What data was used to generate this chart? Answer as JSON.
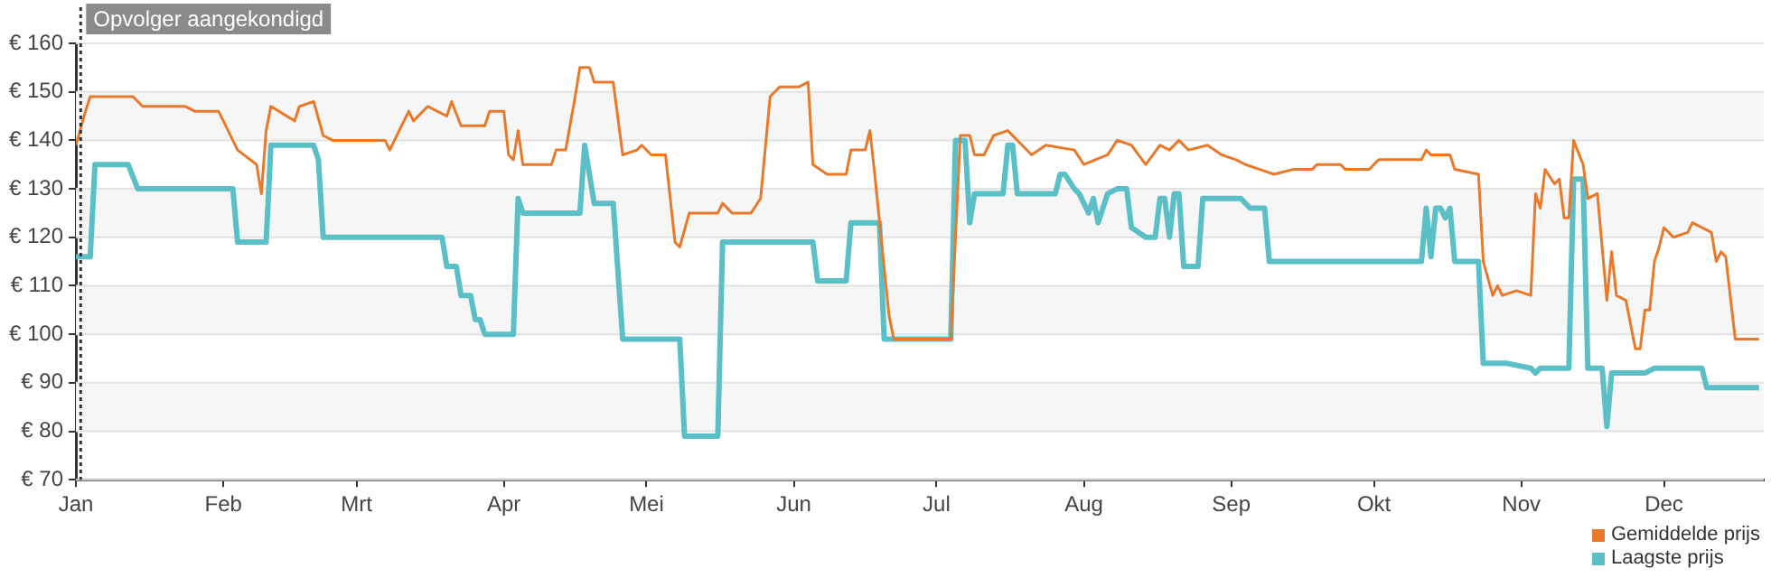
{
  "chart_data": {
    "type": "line",
    "xlim": [
      "--01-01",
      "--12-22"
    ],
    "xticks": [
      {
        "value": "--01-01",
        "label": "Jan"
      },
      {
        "value": "--02-01",
        "label": "Feb"
      },
      {
        "value": "--03-01",
        "label": "Mrt"
      },
      {
        "value": "--04-01",
        "label": "Apr"
      },
      {
        "value": "--05-01",
        "label": "Mei"
      },
      {
        "value": "--06-01",
        "label": "Jun"
      },
      {
        "value": "--07-01",
        "label": "Jul"
      },
      {
        "value": "--08-01",
        "label": "Aug"
      },
      {
        "value": "--09-01",
        "label": "Sep"
      },
      {
        "value": "--10-01",
        "label": "Okt"
      },
      {
        "value": "--11-01",
        "label": "Nov"
      },
      {
        "value": "--12-01",
        "label": "Dec"
      }
    ],
    "ylim": [
      70,
      160
    ],
    "yticks": [
      {
        "value": 70,
        "label": "€ 70"
      },
      {
        "value": 80,
        "label": "€ 80"
      },
      {
        "value": 90,
        "label": "€ 90"
      },
      {
        "value": 100,
        "label": "€ 100"
      },
      {
        "value": 110,
        "label": "€ 110"
      },
      {
        "value": 120,
        "label": "€ 120"
      },
      {
        "value": 130,
        "label": "€ 130"
      },
      {
        "value": 140,
        "label": "€ 140"
      },
      {
        "value": 150,
        "label": "€ 150"
      },
      {
        "value": 160,
        "label": "€ 160"
      }
    ],
    "grid": "y",
    "legend": "bottom right",
    "marker": "none",
    "ref_lines": [
      {
        "axis": "x",
        "value": "--01-02",
        "label": "Opvolger aangekondigd",
        "line_style": "dotted",
        "color": "#333333"
      }
    ],
    "series": [
      {
        "name": "Gemiddelde prijs",
        "color": "#e8792b",
        "x": [
          "--01-01",
          "--01-03",
          "--01-04",
          "--01-13",
          "--01-15",
          "--01-24",
          "--01-26",
          "--01-31",
          "--02-04",
          "--02-08",
          "--02-09",
          "--02-10",
          "--02-11",
          "--02-16",
          "--02-17",
          "--02-20",
          "--02-22",
          "--02-24",
          "--02-28",
          "--03-07",
          "--03-08",
          "--03-10",
          "--03-12",
          "--03-13",
          "--03-16",
          "--03-20",
          "--03-21",
          "--03-23",
          "--03-28",
          "--03-29",
          "--04-01",
          "--04-02",
          "--04-03",
          "--04-04",
          "--04-05",
          "--04-11",
          "--04-12",
          "--04-14",
          "--04-16",
          "--04-17",
          "--04-19",
          "--04-20",
          "--04-24",
          "--04-26",
          "--04-29",
          "--04-30",
          "--05-02",
          "--05-05",
          "--05-07",
          "--05-08",
          "--05-10",
          "--05-13",
          "--05-16",
          "--05-17",
          "--05-19",
          "--05-23",
          "--05-25",
          "--05-27",
          "--05-29",
          "--06-02",
          "--06-04",
          "--06-05",
          "--06-08",
          "--06-12",
          "--06-13",
          "--06-16",
          "--06-17",
          "--06-18",
          "--06-21",
          "--06-22",
          "--07-04",
          "--07-06",
          "--07-08",
          "--07-09",
          "--07-11",
          "--07-13",
          "--07-16",
          "--07-19",
          "--07-21",
          "--07-24",
          "--07-30",
          "--08-01",
          "--08-06",
          "--08-08",
          "--08-11",
          "--08-14",
          "--08-17",
          "--08-19",
          "--08-21",
          "--08-23",
          "--08-27",
          "--08-30",
          "--09-02",
          "--09-04",
          "--09-07",
          "--09-10",
          "--09-14",
          "--09-18",
          "--09-19",
          "--09-24",
          "--09-25",
          "--09-30",
          "--10-02",
          "--10-07",
          "--10-11",
          "--10-12",
          "--10-13",
          "--10-17",
          "--10-18",
          "--10-23",
          "--10-24",
          "--10-26",
          "--10-27",
          "--10-28",
          "--10-31",
          "--11-03",
          "--11-04",
          "--11-05",
          "--11-06",
          "--11-08",
          "--11-09",
          "--11-10",
          "--11-11",
          "--11-12",
          "--11-14",
          "--11-15",
          "--11-17",
          "--11-19",
          "--11-20",
          "--11-21",
          "--11-23",
          "--11-25",
          "--11-26",
          "--11-27",
          "--11-28",
          "--11-29",
          "--11-30",
          "--12-01",
          "--12-03",
          "--12-06",
          "--12-07",
          "--12-11",
          "--12-12",
          "--12-13",
          "--12-14",
          "--12-16",
          "--12-19",
          "--12-21"
        ],
        "values": [
          139,
          146,
          149,
          149,
          147,
          147,
          146,
          146,
          138,
          135,
          129,
          142,
          147,
          144,
          147,
          148,
          141,
          140,
          140,
          140,
          138,
          142,
          146,
          144,
          147,
          145,
          148,
          143,
          143,
          146,
          146,
          137,
          136,
          142,
          135,
          135,
          138,
          138,
          149,
          155,
          155,
          152,
          152,
          137,
          138,
          139,
          137,
          137,
          119,
          118,
          125,
          125,
          125,
          127,
          125,
          125,
          128,
          149,
          151,
          151,
          152,
          135,
          133,
          133,
          138,
          138,
          142,
          133,
          104,
          99,
          99,
          141,
          141,
          137,
          137,
          141,
          142,
          139,
          137,
          139,
          138,
          135,
          137,
          140,
          139,
          135,
          139,
          138,
          140,
          138,
          139,
          137,
          136,
          135,
          134,
          133,
          134,
          134,
          135,
          135,
          134,
          134,
          136,
          136,
          136,
          138,
          137,
          137,
          134,
          133,
          115,
          108,
          110,
          108,
          109,
          108,
          129,
          126,
          134,
          131,
          132,
          124,
          124,
          140,
          135,
          128,
          129,
          107,
          117,
          108,
          107,
          97,
          97,
          105,
          105,
          115,
          118,
          122,
          120,
          121,
          123,
          121,
          115,
          117,
          116,
          99,
          99,
          99
        ]
      },
      {
        "name": "Laagste prijs",
        "color": "#5bbfc8",
        "x": [
          "--01-01",
          "--01-04",
          "--01-05",
          "--01-12",
          "--01-14",
          "--02-03",
          "--02-04",
          "--02-10",
          "--02-11",
          "--02-20",
          "--02-21",
          "--02-22",
          "--03-19",
          "--03-20",
          "--03-22",
          "--03-23",
          "--03-25",
          "--03-26",
          "--03-27",
          "--03-28",
          "--04-03",
          "--04-04",
          "--04-05",
          "--04-17",
          "--04-18",
          "--04-20",
          "--04-24",
          "--04-26",
          "--05-08",
          "--05-09",
          "--05-16",
          "--05-17",
          "--06-05",
          "--06-06",
          "--06-12",
          "--06-13",
          "--06-19",
          "--06-20",
          "--07-04",
          "--07-05",
          "--07-07",
          "--07-08",
          "--07-09",
          "--07-15",
          "--07-16",
          "--07-17",
          "--07-18",
          "--07-26",
          "--07-27",
          "--07-28",
          "--07-30",
          "--07-31",
          "--08-02",
          "--08-03",
          "--08-04",
          "--08-06",
          "--08-08",
          "--08-10",
          "--08-11",
          "--08-14",
          "--08-16",
          "--08-17",
          "--08-18",
          "--08-19",
          "--08-20",
          "--08-21",
          "--08-22",
          "--08-25",
          "--08-26",
          "--09-03",
          "--09-05",
          "--09-08",
          "--09-09",
          "--10-11",
          "--10-12",
          "--10-13",
          "--10-14",
          "--10-15",
          "--10-16",
          "--10-17",
          "--10-18",
          "--10-23",
          "--10-24",
          "--10-29",
          "--11-03",
          "--11-04",
          "--11-05",
          "--11-11",
          "--11-12",
          "--11-14",
          "--11-15",
          "--11-18",
          "--11-19",
          "--11-20",
          "--11-27",
          "--11-29",
          "--12-04",
          "--12-09",
          "--12-10",
          "--12-21"
        ],
        "values": [
          116,
          116,
          135,
          135,
          130,
          130,
          119,
          119,
          139,
          139,
          136,
          120,
          120,
          114,
          114,
          108,
          108,
          103,
          103,
          100,
          100,
          128,
          125,
          125,
          139,
          127,
          127,
          99,
          99,
          79,
          79,
          119,
          119,
          111,
          111,
          123,
          123,
          99,
          99,
          140,
          140,
          123,
          129,
          129,
          139,
          139,
          129,
          129,
          133,
          133,
          130,
          129,
          125,
          128,
          123,
          129,
          130,
          130,
          122,
          120,
          120,
          128,
          128,
          120,
          129,
          129,
          114,
          114,
          128,
          128,
          126,
          126,
          115,
          115,
          126,
          116,
          126,
          126,
          124,
          126,
          115,
          115,
          94,
          94,
          93,
          92,
          93,
          93,
          132,
          132,
          93,
          93,
          81,
          92,
          92,
          93,
          93,
          93,
          89,
          89
        ]
      }
    ]
  }
}
